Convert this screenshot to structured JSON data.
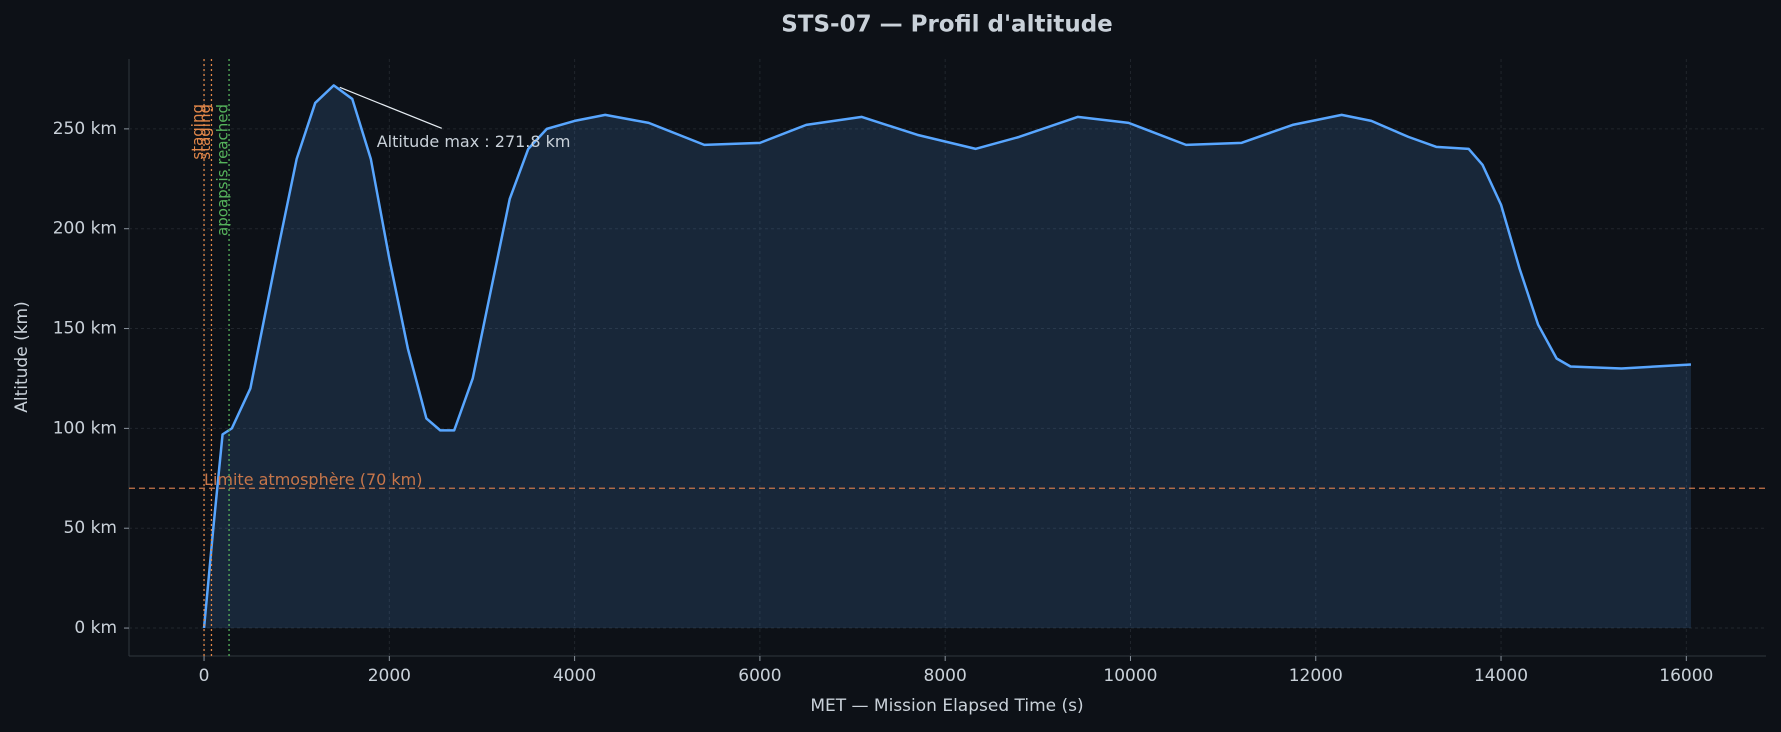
{
  "chart_data": {
    "type": "line",
    "title": "STS-07 — Profil d'altitude",
    "xlabel": "MET — Mission Elapsed Time (s)",
    "ylabel": "Altitude (km)",
    "x": [
      0,
      100,
      200,
      300,
      500,
      800,
      1000,
      1200,
      1400,
      1600,
      1800,
      2000,
      2200,
      2400,
      2550,
      2700,
      2900,
      3100,
      3300,
      3500,
      3700,
      4000,
      4330,
      4800,
      5400,
      6000,
      6500,
      7100,
      7700,
      8330,
      8800,
      9430,
      9980,
      10600,
      11200,
      11750,
      12280,
      12600,
      13000,
      13300,
      13650,
      13800,
      14000,
      14200,
      14400,
      14600,
      14750,
      15300,
      16050
    ],
    "values": [
      0,
      50,
      97,
      100,
      120,
      190,
      235,
      263,
      271.8,
      265,
      235,
      185,
      140,
      105,
      99,
      99,
      125,
      170,
      215,
      240,
      250,
      254,
      257,
      253,
      242,
      243,
      252,
      256,
      247,
      240,
      246,
      256,
      253,
      242,
      243,
      252,
      257,
      254,
      246,
      241,
      240,
      232,
      212,
      180,
      152,
      135,
      131,
      130,
      132
    ],
    "color": "#58a6ff",
    "xlim": [
      -810,
      16860
    ],
    "ylim": [
      -14,
      285
    ],
    "xticks": [
      0,
      2000,
      4000,
      6000,
      8000,
      10000,
      12000,
      14000,
      16000
    ],
    "yticks": [
      {
        "value": 0,
        "label": "0 km"
      },
      {
        "value": 50,
        "label": "50 km"
      },
      {
        "value": 100,
        "label": "100 km"
      },
      {
        "value": 150,
        "label": "150 km"
      },
      {
        "value": 200,
        "label": "200 km"
      },
      {
        "value": 250,
        "label": "250 km"
      }
    ],
    "grid": true,
    "events": [
      {
        "label": "staging",
        "x": 0,
        "color": "#e3884a"
      },
      {
        "label": "staging",
        "x": 80,
        "color": "#e3884a"
      },
      {
        "label": "apoapsis reached",
        "x": 270,
        "color": "#56b35c"
      }
    ],
    "hline": {
      "y": 70,
      "label": "Limite atmosphère (70 km)",
      "color": "#c7764a"
    },
    "annotation": {
      "text": "Altitude max : 271.8 km",
      "x": 1400,
      "y": 271.8
    }
  }
}
